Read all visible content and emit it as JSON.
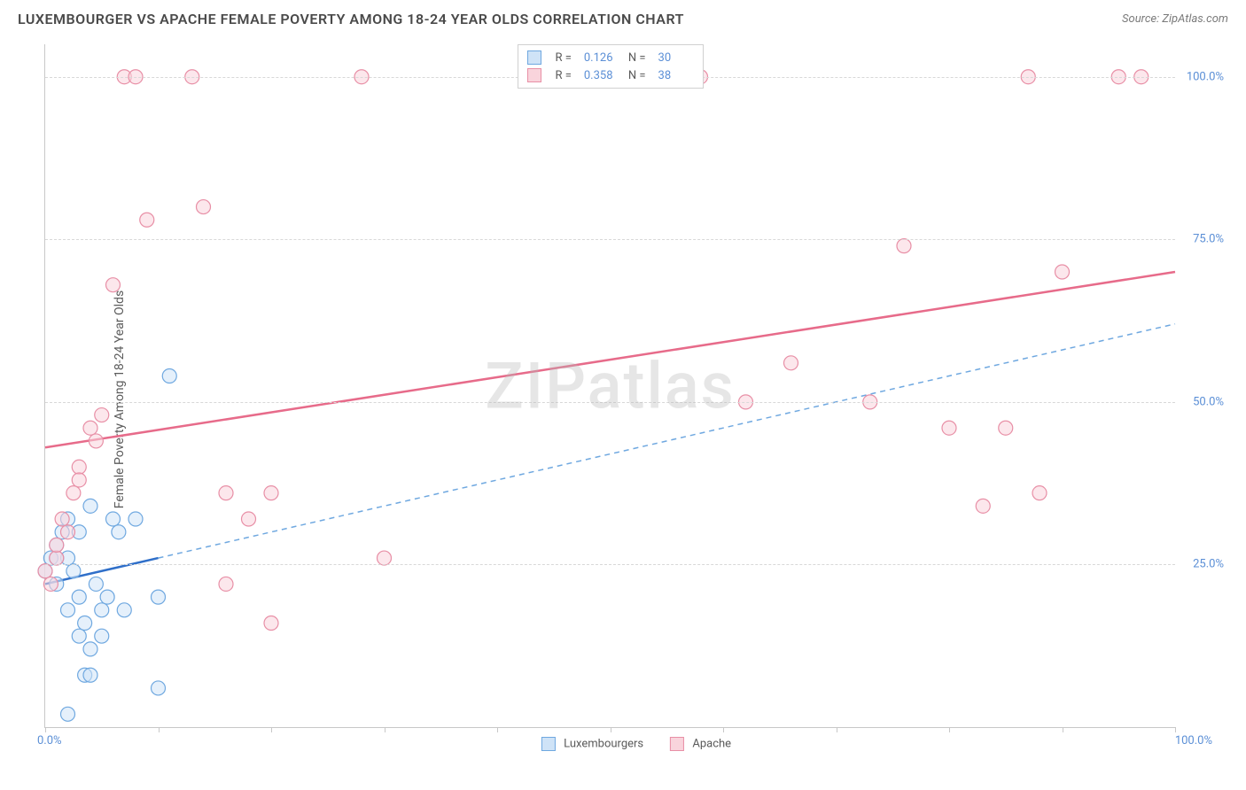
{
  "title": "LUXEMBOURGER VS APACHE FEMALE POVERTY AMONG 18-24 YEAR OLDS CORRELATION CHART",
  "source_label": "Source: ZipAtlas.com",
  "ylabel": "Female Poverty Among 18-24 Year Olds",
  "watermark": "ZIPatlas",
  "chart": {
    "type": "scatter",
    "xlim": [
      0,
      100
    ],
    "ylim": [
      0,
      105
    ],
    "x_ticks": [
      0,
      10,
      20,
      30,
      40,
      50,
      60,
      70,
      80,
      90,
      100
    ],
    "y_gridlines": [
      25,
      50,
      75,
      100
    ],
    "y_tick_labels": {
      "25": "25.0%",
      "50": "50.0%",
      "75": "75.0%",
      "100": "100.0%"
    },
    "x_tick_labels": {
      "0": "0.0%",
      "100": "100.0%"
    },
    "background_color": "#ffffff",
    "grid_color": "#d8d8d8",
    "axis_color": "#c8c8c8",
    "series": [
      {
        "name": "Luxembourgers",
        "color_fill": "#cfe3f7",
        "color_stroke": "#6fa8e0",
        "marker_radius": 8,
        "fill_opacity": 0.55,
        "R": "0.126",
        "N": "30",
        "trend_solid": {
          "x1": 0,
          "y1": 22,
          "x2": 10,
          "y2": 26,
          "color": "#2f6fc9",
          "width": 2.5
        },
        "trend_dashed": {
          "x1": 10,
          "y1": 26,
          "x2": 100,
          "y2": 62,
          "color": "#6fa8e0",
          "width": 1.5,
          "dash": "6,5"
        },
        "points": [
          [
            0,
            24
          ],
          [
            0.5,
            26
          ],
          [
            1,
            28
          ],
          [
            1,
            22
          ],
          [
            1.5,
            30
          ],
          [
            2,
            26
          ],
          [
            2,
            18
          ],
          [
            2,
            32
          ],
          [
            2.5,
            24
          ],
          [
            3,
            14
          ],
          [
            3,
            20
          ],
          [
            3,
            30
          ],
          [
            3.5,
            16
          ],
          [
            3.5,
            8
          ],
          [
            4,
            12
          ],
          [
            4,
            34
          ],
          [
            4.5,
            22
          ],
          [
            5,
            18
          ],
          [
            5,
            14
          ],
          [
            5.5,
            20
          ],
          [
            6,
            32
          ],
          [
            6.5,
            30
          ],
          [
            7,
            18
          ],
          [
            8,
            32
          ],
          [
            10,
            20
          ],
          [
            10,
            6
          ],
          [
            2,
            2
          ],
          [
            4,
            8
          ],
          [
            11,
            54
          ],
          [
            1,
            26
          ]
        ]
      },
      {
        "name": "Apache",
        "color_fill": "#f9d4dc",
        "color_stroke": "#e88fa6",
        "marker_radius": 8,
        "fill_opacity": 0.55,
        "R": "0.358",
        "N": "38",
        "trend_solid": {
          "x1": 0,
          "y1": 43,
          "x2": 100,
          "y2": 70,
          "color": "#e76b8a",
          "width": 2.5
        },
        "points": [
          [
            0,
            24
          ],
          [
            0.5,
            22
          ],
          [
            1,
            26
          ],
          [
            1,
            28
          ],
          [
            1.5,
            32
          ],
          [
            2,
            30
          ],
          [
            2.5,
            36
          ],
          [
            3,
            40
          ],
          [
            3,
            38
          ],
          [
            4,
            46
          ],
          [
            4.5,
            44
          ],
          [
            5,
            48
          ],
          [
            6,
            68
          ],
          [
            7,
            100
          ],
          [
            8,
            100
          ],
          [
            9,
            78
          ],
          [
            13,
            100
          ],
          [
            14,
            80
          ],
          [
            16,
            36
          ],
          [
            16,
            22
          ],
          [
            18,
            32
          ],
          [
            20,
            16
          ],
          [
            20,
            36
          ],
          [
            28,
            100
          ],
          [
            30,
            26
          ],
          [
            58,
            100
          ],
          [
            62,
            50
          ],
          [
            66,
            56
          ],
          [
            73,
            50
          ],
          [
            76,
            74
          ],
          [
            80,
            46
          ],
          [
            83,
            34
          ],
          [
            85,
            46
          ],
          [
            87,
            100
          ],
          [
            88,
            36
          ],
          [
            90,
            70
          ],
          [
            95,
            100
          ],
          [
            97,
            100
          ]
        ]
      }
    ]
  },
  "top_legend": {
    "rows": [
      {
        "swatch_fill": "#cfe3f7",
        "swatch_stroke": "#6fa8e0",
        "r_label": "R =",
        "r_value": "0.126",
        "n_label": "N =",
        "n_value": "30"
      },
      {
        "swatch_fill": "#f9d4dc",
        "swatch_stroke": "#e88fa6",
        "r_label": "R =",
        "r_value": "0.358",
        "n_label": "N =",
        "n_value": "38"
      }
    ]
  },
  "bottom_legend": [
    {
      "swatch_fill": "#cfe3f7",
      "swatch_stroke": "#6fa8e0",
      "label": "Luxembourgers"
    },
    {
      "swatch_fill": "#f9d4dc",
      "swatch_stroke": "#e88fa6",
      "label": "Apache"
    }
  ]
}
